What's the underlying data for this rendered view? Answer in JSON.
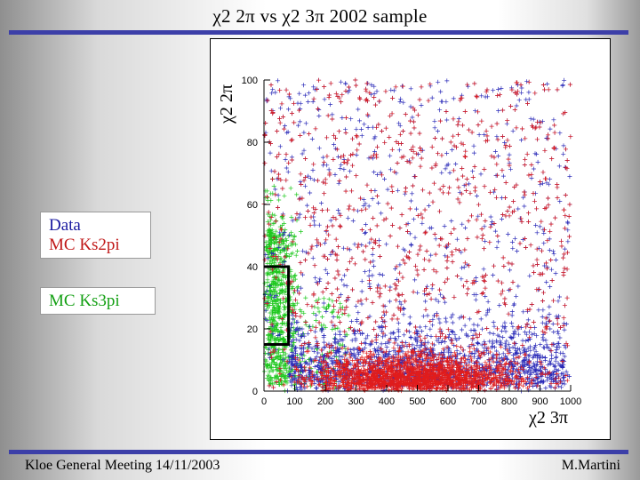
{
  "slide": {
    "title": "χ2 2π   vs χ2 3π 2002   sample",
    "footer_left": "Kloe General Meeting 14/11/2003",
    "footer_right": "M.Martini"
  },
  "legend": [
    {
      "label": "Data",
      "color": "#1a1aa0"
    },
    {
      "label": "MC Ks2pi",
      "color": "#c01818"
    },
    {
      "label": "MC Ks3pi",
      "color": "#14a014"
    }
  ],
  "chart_data": {
    "type": "scatter",
    "title": "",
    "xlabel": "χ2 3π",
    "ylabel": "χ2 2π",
    "xlim": [
      0,
      1000
    ],
    "ylim": [
      0,
      100
    ],
    "x_ticks": [
      "0",
      "100",
      "200",
      "300",
      "400",
      "500",
      "600",
      "700",
      "800",
      "900",
      "1000"
    ],
    "y_ticks": [
      "0",
      "20",
      "40",
      "60",
      "80",
      "100"
    ],
    "series": [
      {
        "name": "Data",
        "color": "#2a2ab8",
        "description": "blue crosses spread over full range, densest at low χ2 2π for χ2 3π 300–900"
      },
      {
        "name": "MC Ks2pi",
        "color": "#e01c1c",
        "description": "red crosses concentrated at χ2 2π below ~10, χ2 3π 100–900"
      },
      {
        "name": "MC Ks3pi",
        "color": "#1ec81e",
        "description": "green crosses concentrated at χ2 3π below ~100, χ2 2π 0–60"
      }
    ],
    "selection_box": {
      "x_max": 80,
      "y_min": 15,
      "y_max": 40
    }
  }
}
